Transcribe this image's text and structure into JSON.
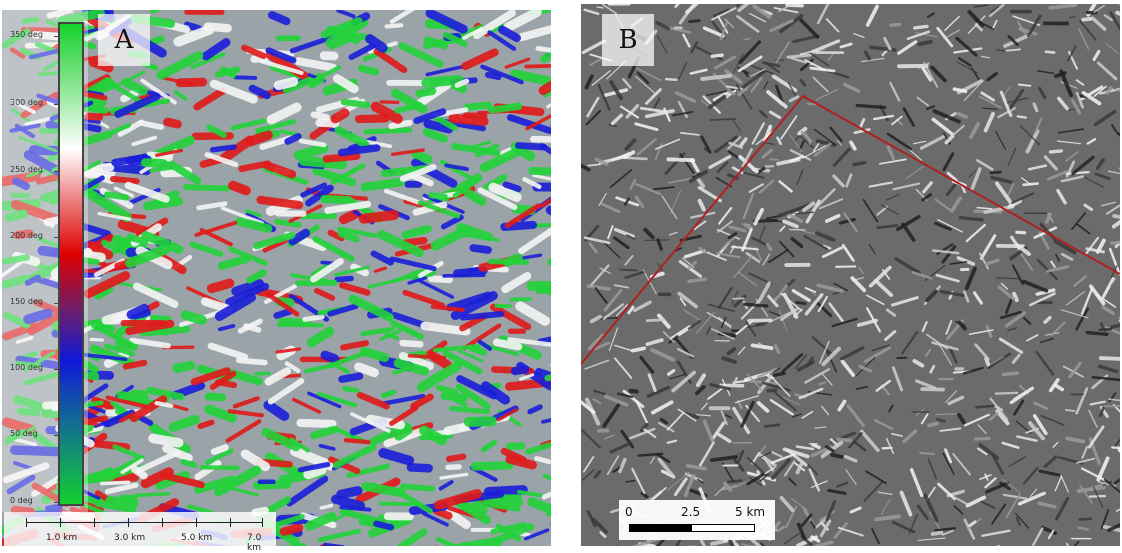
{
  "panels": [
    {
      "label": "A"
    },
    {
      "label": "B"
    }
  ],
  "legend_a": {
    "ticks": [
      "350 deg",
      "300 deg",
      "250 deg",
      "200 deg",
      "150 deg",
      "100 deg",
      "50 deg",
      "0 deg"
    ],
    "colors": [
      "#15d12c",
      "#ffffff",
      "#dd0000",
      "#1018d8",
      "#13d030"
    ]
  },
  "scale_a": {
    "labels": [
      "1.0 km",
      "3.0 km",
      "5.0 km",
      "7.0 km"
    ]
  },
  "scale_b": {
    "labels": [
      "0",
      "2.5",
      "5 km"
    ]
  },
  "colors": {
    "profile_line": "#b02020",
    "aspect_green": "#22d33a",
    "aspect_red": "#e01a1a",
    "aspect_blue": "#1a1fd8"
  }
}
